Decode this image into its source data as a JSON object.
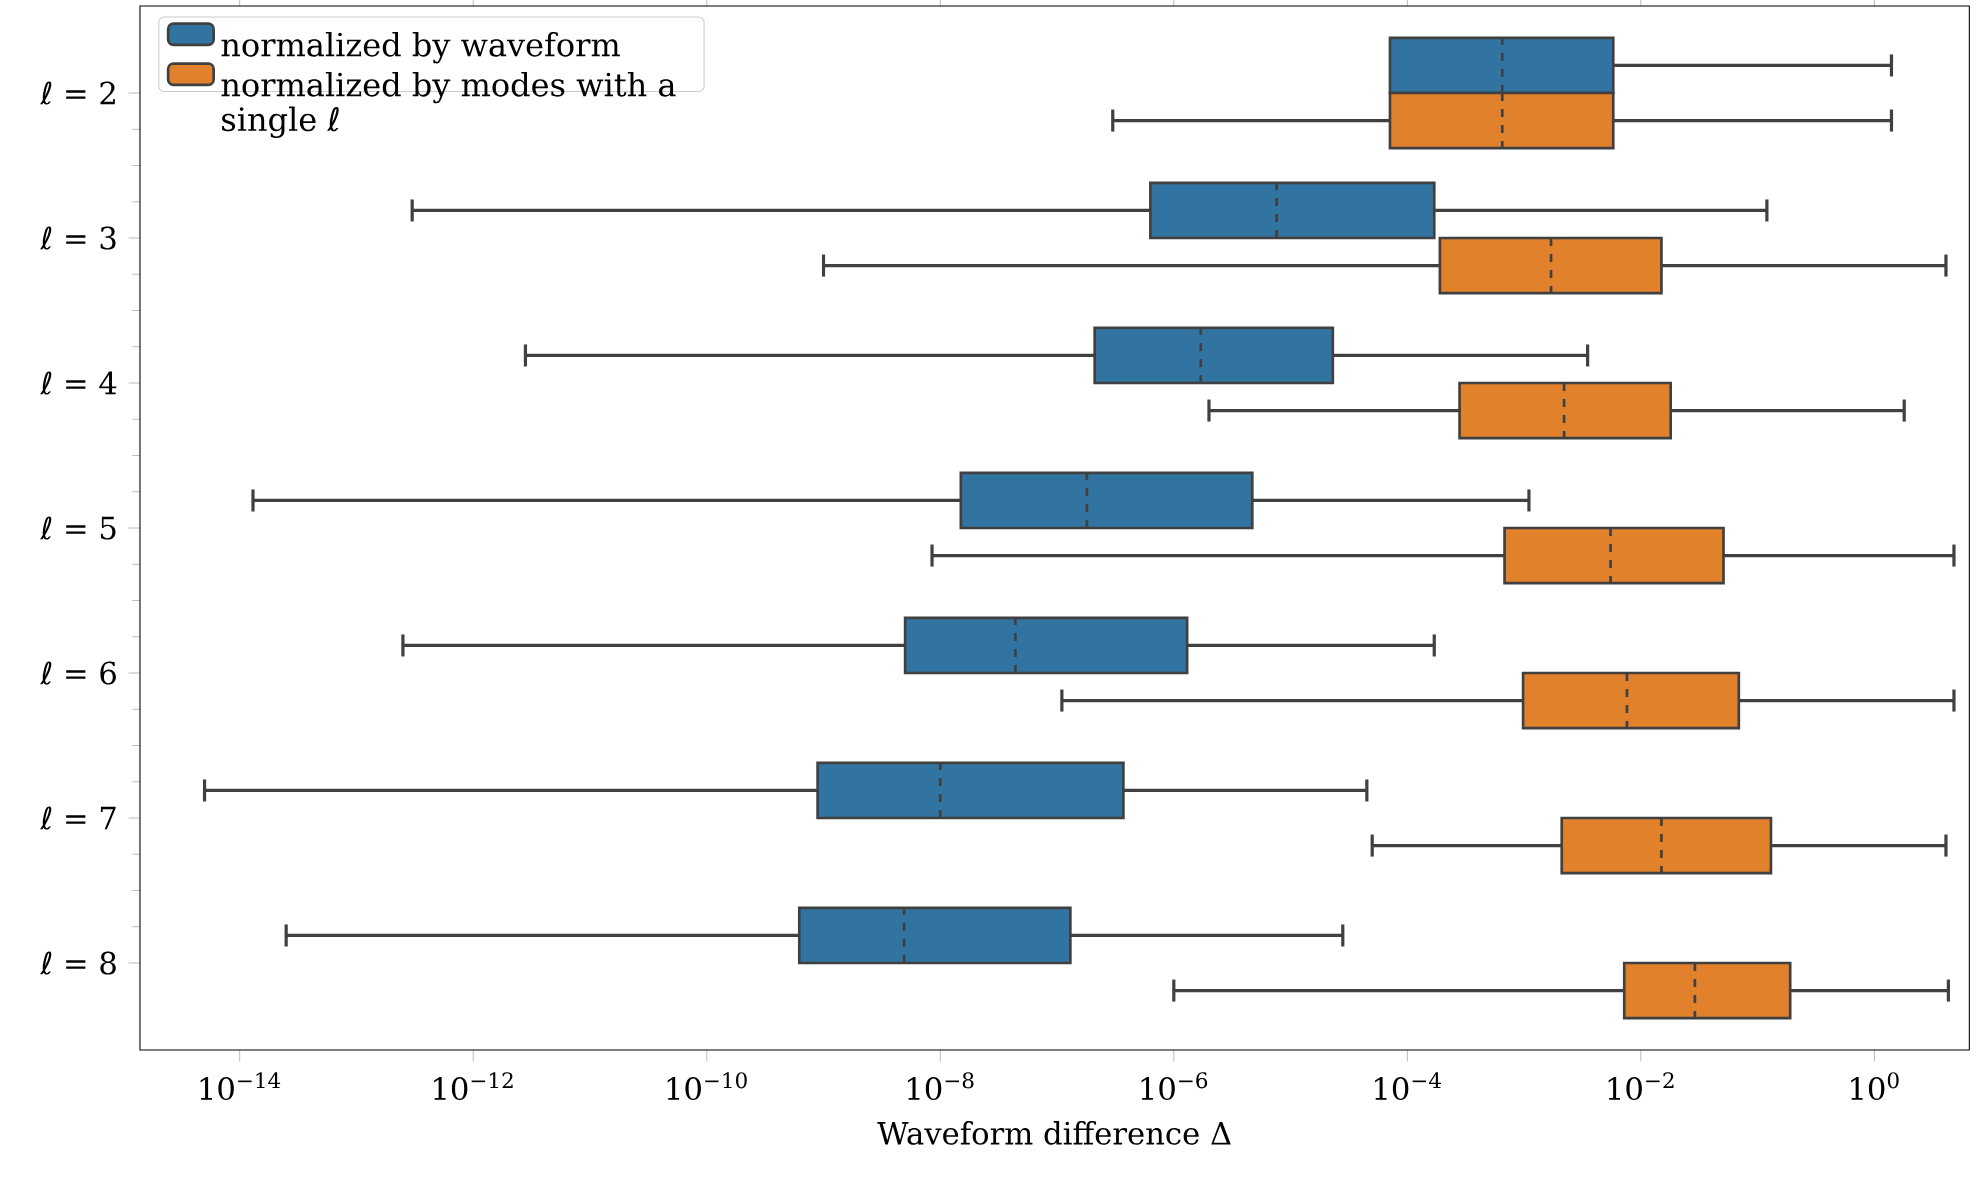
{
  "chart_data": {
    "type": "box",
    "orientation": "horizontal",
    "log": "x",
    "xlabel": "Waveform difference Δ",
    "categories": [
      "ℓ = 2",
      "ℓ = 3",
      "ℓ = 4",
      "ℓ = 5",
      "ℓ = 6",
      "ℓ = 7",
      "ℓ = 8"
    ],
    "xlim": [
      1.4e-15,
      6.5
    ],
    "xticks": [
      {
        "value": 1e-14,
        "label": "10$^{−14}$"
      },
      {
        "value": 1e-12,
        "label": "10$^{−12}$"
      },
      {
        "value": 1e-10,
        "label": "10$^{−10}$"
      },
      {
        "value": 1e-08,
        "label": "10$^{−8}$"
      },
      {
        "value": 1e-06,
        "label": "10$^{−6}$"
      },
      {
        "value": 0.0001,
        "label": "10$^{−4}$"
      },
      {
        "value": 0.01,
        "label": "10$^{−2}$"
      },
      {
        "value": 1,
        "label": "10$^{0}$"
      }
    ],
    "legend": "top left",
    "series": [
      {
        "name": "normalized by waveform",
        "color": "#3274a1",
        "boxes": [
          {
            "low": null,
            "q1": 7.1e-05,
            "median": 0.00065,
            "q3": 0.0058,
            "high": 1.4
          },
          {
            "low": 3e-13,
            "q1": 6.3e-07,
            "median": 7.6e-06,
            "q3": 0.00017,
            "high": 0.12
          },
          {
            "low": 2.8e-12,
            "q1": 2.1e-07,
            "median": 1.7e-06,
            "q3": 2.3e-05,
            "high": 0.0035
          },
          {
            "low": 1.3e-14,
            "q1": 1.5e-08,
            "median": 1.8e-07,
            "q3": 4.7e-06,
            "high": 0.0011
          },
          {
            "low": 2.5e-13,
            "q1": 5e-09,
            "median": 4.4e-08,
            "q3": 1.3e-06,
            "high": 0.00017
          },
          {
            "low": 5e-15,
            "q1": 8.9e-10,
            "median": 1e-08,
            "q3": 3.7e-07,
            "high": 4.5e-05
          },
          {
            "low": 2.5e-14,
            "q1": 6.2e-10,
            "median": 4.9e-09,
            "q3": 1.3e-07,
            "high": 2.8e-05
          }
        ]
      },
      {
        "name": "normalized by modes with a single ℓ",
        "color": "#e1812c",
        "boxes": [
          {
            "low": 3e-07,
            "q1": 7.1e-05,
            "median": 0.00065,
            "q3": 0.0058,
            "high": 1.4
          },
          {
            "low": 1e-09,
            "q1": 0.00019,
            "median": 0.0017,
            "q3": 0.015,
            "high": 4.1
          },
          {
            "low": 2e-06,
            "q1": 0.00028,
            "median": 0.0022,
            "q3": 0.018,
            "high": 1.8
          },
          {
            "low": 8.5e-09,
            "q1": 0.00068,
            "median": 0.0055,
            "q3": 0.051,
            "high": 4.8
          },
          {
            "low": 1.1e-07,
            "q1": 0.00098,
            "median": 0.0076,
            "q3": 0.069,
            "high": 4.8
          },
          {
            "low": 5e-05,
            "q1": 0.0021,
            "median": 0.015,
            "q3": 0.13,
            "high": 4.1
          },
          {
            "low": 1e-06,
            "q1": 0.0072,
            "median": 0.029,
            "q3": 0.19,
            "high": 4.3
          }
        ]
      }
    ]
  }
}
